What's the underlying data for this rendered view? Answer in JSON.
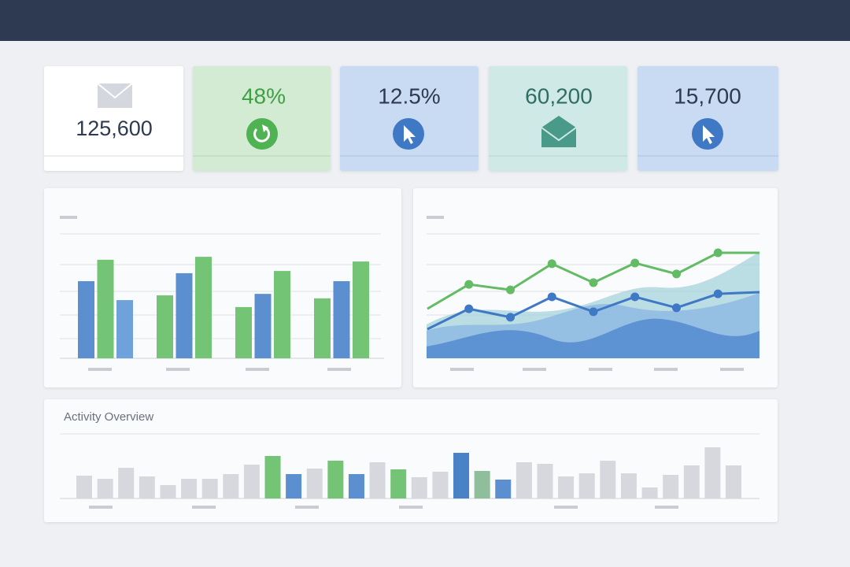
{
  "kpis": [
    {
      "value": "125,600"
    },
    {
      "value": "48%"
    },
    {
      "value": "12.5%"
    },
    {
      "value": "60,200"
    },
    {
      "value": "15,700"
    }
  ],
  "chart_data": [
    {
      "type": "bar",
      "categories": [
        null,
        null,
        null,
        null
      ],
      "values": [
        [
          3.1,
          3.96,
          2.34
        ],
        [
          2.53,
          3.42,
          4.08
        ],
        [
          2.06,
          2.59,
          3.51
        ],
        [
          2.41,
          3.1,
          3.89
        ]
      ],
      "colors": [
        [
          "#5b8fd0",
          "#74c476",
          "#6fa1db"
        ],
        [
          "#74c476",
          "#5b8fd0",
          "#74c476"
        ],
        [
          "#74c476",
          "#5b8fd0",
          "#74c476"
        ],
        [
          "#74c476",
          "#5b8fd0",
          "#74c476"
        ]
      ],
      "ylim": [
        0,
        5
      ]
    },
    {
      "type": "line",
      "categories": [
        null,
        null,
        null,
        null,
        null,
        null,
        null,
        null,
        null
      ],
      "series": [
        {
          "color": "#63bb65",
          "values": [
            1.99,
            2.97,
            2.75,
            3.8,
            3.04,
            3.83,
            3.39,
            4.24,
            4.24
          ]
        },
        {
          "color": "#3f78c4",
          "values": [
            1.17,
            1.99,
            1.65,
            2.47,
            1.87,
            2.47,
            2.03,
            2.59,
            2.66
          ]
        }
      ],
      "ylim": [
        0,
        5
      ]
    },
    {
      "type": "bar",
      "title": "Activity Overview",
      "values": [
        29,
        25,
        39,
        28,
        17,
        25,
        25,
        31,
        43,
        54,
        31,
        38,
        48,
        31,
        46,
        37,
        27,
        34,
        58,
        35,
        24,
        46,
        44,
        28,
        32,
        48,
        32,
        14,
        30,
        42,
        65,
        42
      ],
      "colors": [
        "#d6d8de",
        "#d6d8de",
        "#d6d8de",
        "#d6d8de",
        "#d6d8de",
        "#d6d8de",
        "#d6d8de",
        "#d6d8de",
        "#d6d8de",
        "#74c476",
        "#5b8fd0",
        "#d6d8de",
        "#74c476",
        "#5b8fd0",
        "#d6d8de",
        "#74c476",
        "#d6d8de",
        "#d6d8de",
        "#4a82c8",
        "#8fbf9a",
        "#5b8fd0",
        "#d6d8de",
        "#d6d8de",
        "#d6d8de",
        "#d6d8de",
        "#d6d8de",
        "#d6d8de",
        "#d6d8de",
        "#d6d8de",
        "#d6d8de",
        "#d6d8de",
        "#d6d8de"
      ],
      "ylim": [
        0,
        80
      ]
    }
  ]
}
